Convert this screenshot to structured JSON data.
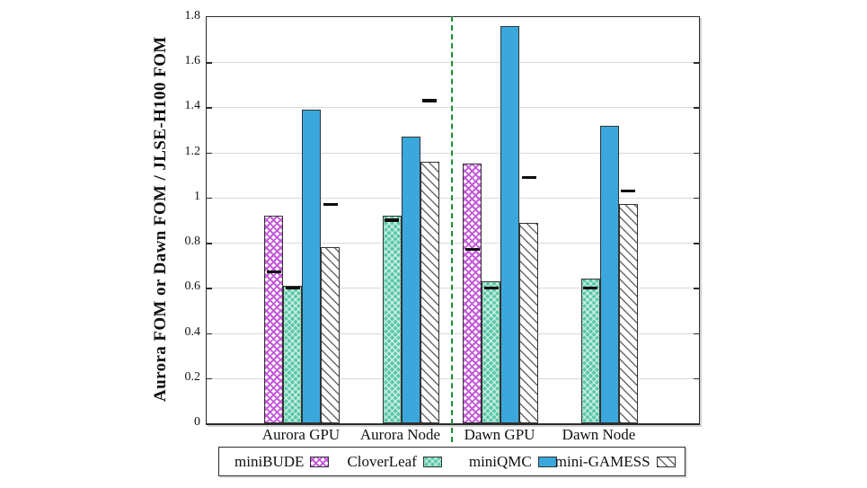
{
  "chart_data": {
    "type": "bar",
    "title": "",
    "ylabel": "Aurora FOM or Dawn FOM / JLSE-H100 FOM",
    "xlabel": "",
    "ylim": [
      0,
      1.8
    ],
    "grid": true,
    "legend_position": "bottom",
    "categories": [
      "Aurora GPU",
      "Aurora Node",
      "Dawn GPU",
      "Dawn Node"
    ],
    "yticks": [
      {
        "label": "0",
        "value": 0
      },
      {
        "label": "0.2",
        "value": 0.2
      },
      {
        "label": "0.4",
        "value": 0.4
      },
      {
        "label": "0.6",
        "value": 0.6
      },
      {
        "label": "0.8",
        "value": 0.8
      },
      {
        "label": "1",
        "value": 1
      },
      {
        "label": "1.2",
        "value": 1.2
      },
      {
        "label": "1.4",
        "value": 1.4
      },
      {
        "label": "1.6",
        "value": 1.6
      },
      {
        "label": "1.8",
        "value": 1.8
      }
    ],
    "series": [
      {
        "name": "miniBUDE",
        "style": "crosshatch-magenta",
        "color": "#c35ad8",
        "values": [
          0.92,
          null,
          1.15,
          null
        ],
        "markers": [
          0.67,
          null,
          0.77,
          null
        ]
      },
      {
        "name": "CloverLeaf",
        "style": "checker-green",
        "color": "#58c7a6",
        "values": [
          0.61,
          0.92,
          0.63,
          0.64
        ],
        "markers": [
          0.6,
          0.9,
          0.6,
          0.6
        ]
      },
      {
        "name": "miniQMC",
        "style": "solid-blue",
        "color": "#3aa8dd",
        "values": [
          1.39,
          1.27,
          1.76,
          1.32
        ],
        "markers": [
          null,
          null,
          null,
          null
        ]
      },
      {
        "name": "mini-GAMESS",
        "style": "hatch-gray",
        "color": "#6a6a6a",
        "values": [
          0.78,
          1.16,
          0.89,
          0.97
        ],
        "markers": [
          0.97,
          1.43,
          1.09,
          1.03
        ]
      }
    ],
    "separator": {
      "after_category_index": 1,
      "color": "#1e8c34",
      "style": "dashed"
    },
    "marker_color": "#0d0d0d"
  }
}
